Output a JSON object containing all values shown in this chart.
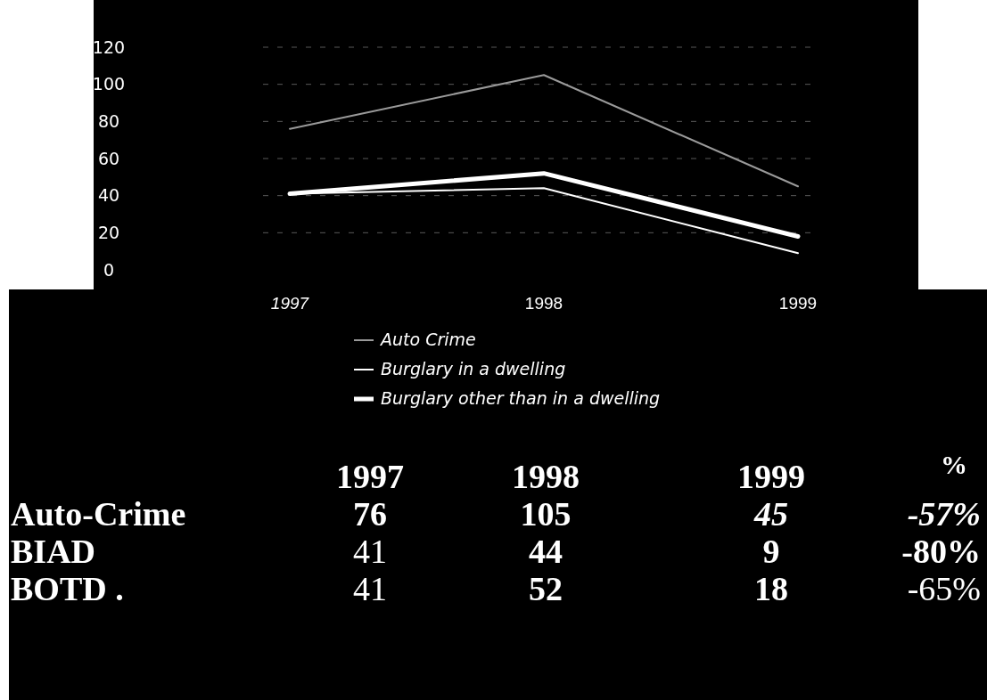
{
  "chart_data": {
    "type": "line",
    "categories": [
      "1997",
      "1998",
      "1999"
    ],
    "series": [
      {
        "name": "Auto Crime",
        "color": "#9a9a9a",
        "values": [
          76,
          105,
          45
        ]
      },
      {
        "name": "Burglary in a dwelling",
        "color": "#ffffff",
        "values": [
          41,
          44,
          9
        ]
      },
      {
        "name": "Burglary other than in a dwelling",
        "color": "#ffffff",
        "values": [
          41,
          52,
          18
        ]
      }
    ],
    "ylim": [
      0,
      120
    ],
    "yticks": [
      0,
      20,
      40,
      60,
      80,
      100,
      120
    ],
    "grid": "y",
    "legend": "bottom",
    "marker": "none",
    "line_style": "solid",
    "data_labels": true,
    "annotations": [
      "Auto-Crime",
      "BIAD",
      "BOTD .",
      "%",
      "-57%",
      "-80%",
      "-65%"
    ]
  }
}
